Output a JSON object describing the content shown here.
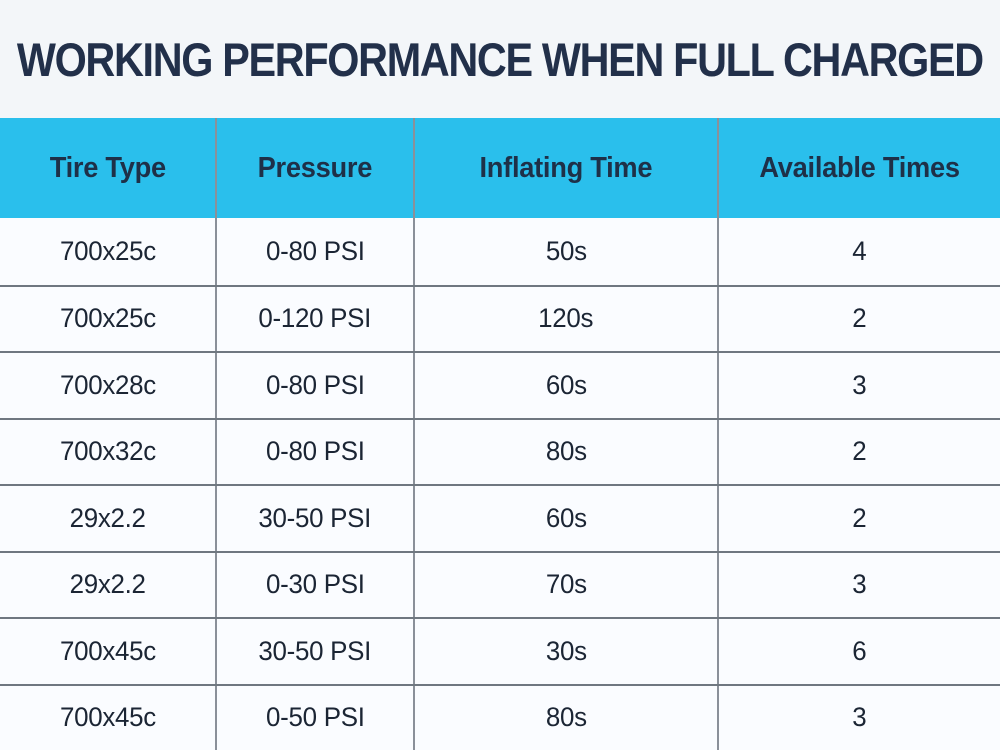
{
  "title": "WORKING PERFORMANCE WHEN FULL CHARGED",
  "chart_data": {
    "type": "table",
    "title": "WORKING PERFORMANCE WHEN FULL CHARGED",
    "columns": [
      "Tire Type",
      "Pressure",
      "Inflating Time",
      "Available Times"
    ],
    "rows": [
      [
        "700x25c",
        "0-80 PSI",
        "50s",
        "4"
      ],
      [
        "700x25c",
        "0-120 PSI",
        "120s",
        "2"
      ],
      [
        "700x28c",
        "0-80 PSI",
        "60s",
        "3"
      ],
      [
        "700x32c",
        "0-80 PSI",
        "80s",
        "2"
      ],
      [
        "29x2.2",
        "30-50 PSI",
        "60s",
        "2"
      ],
      [
        "29x2.2",
        "0-30 PSI",
        "70s",
        "3"
      ],
      [
        "700x45c",
        "30-50 PSI",
        "30s",
        "6"
      ],
      [
        "700x45c",
        "0-50 PSI",
        "80s",
        "3"
      ]
    ]
  },
  "colors": {
    "page_background": "#f3f6f9",
    "header_background": "#2abfec",
    "title_text": "#22304a",
    "header_text": "#1e3048",
    "cell_text": "#1b2534",
    "row_background": "#fafcff",
    "horizontal_border": "#6f7780",
    "vertical_border": "#8a9099"
  }
}
